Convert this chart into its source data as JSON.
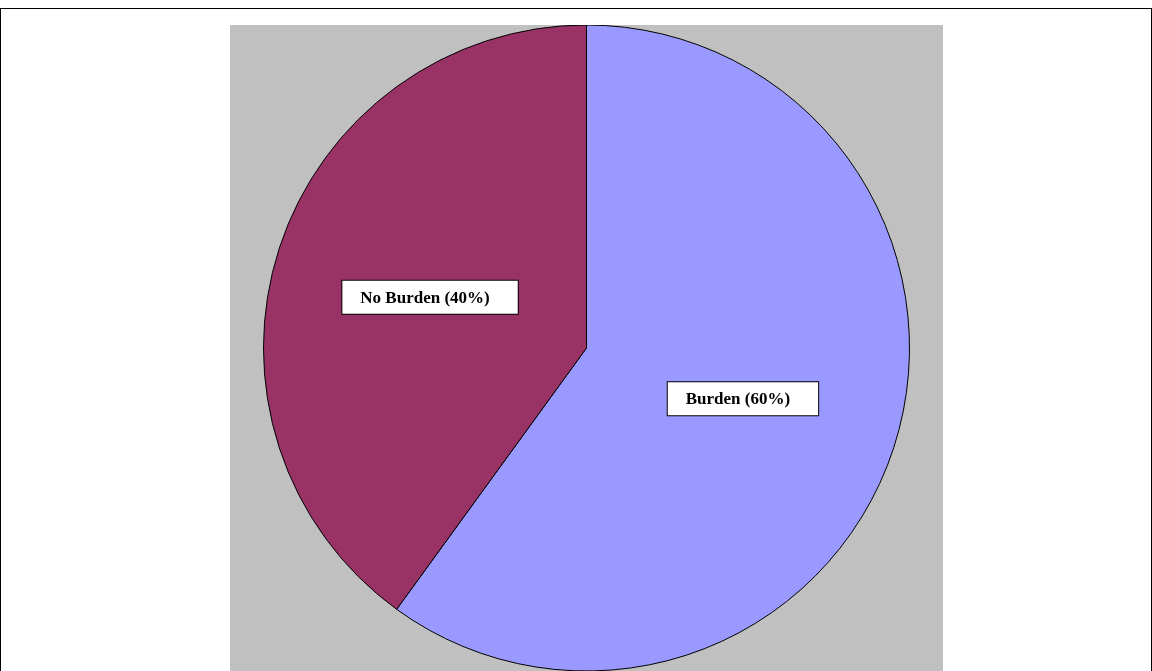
{
  "chart_data": {
    "type": "pie",
    "categories": [
      "Burden (60%)",
      "No Burden (40%)"
    ],
    "values": [
      60,
      40
    ],
    "colors": [
      "#9999ff",
      "#993366"
    ]
  }
}
